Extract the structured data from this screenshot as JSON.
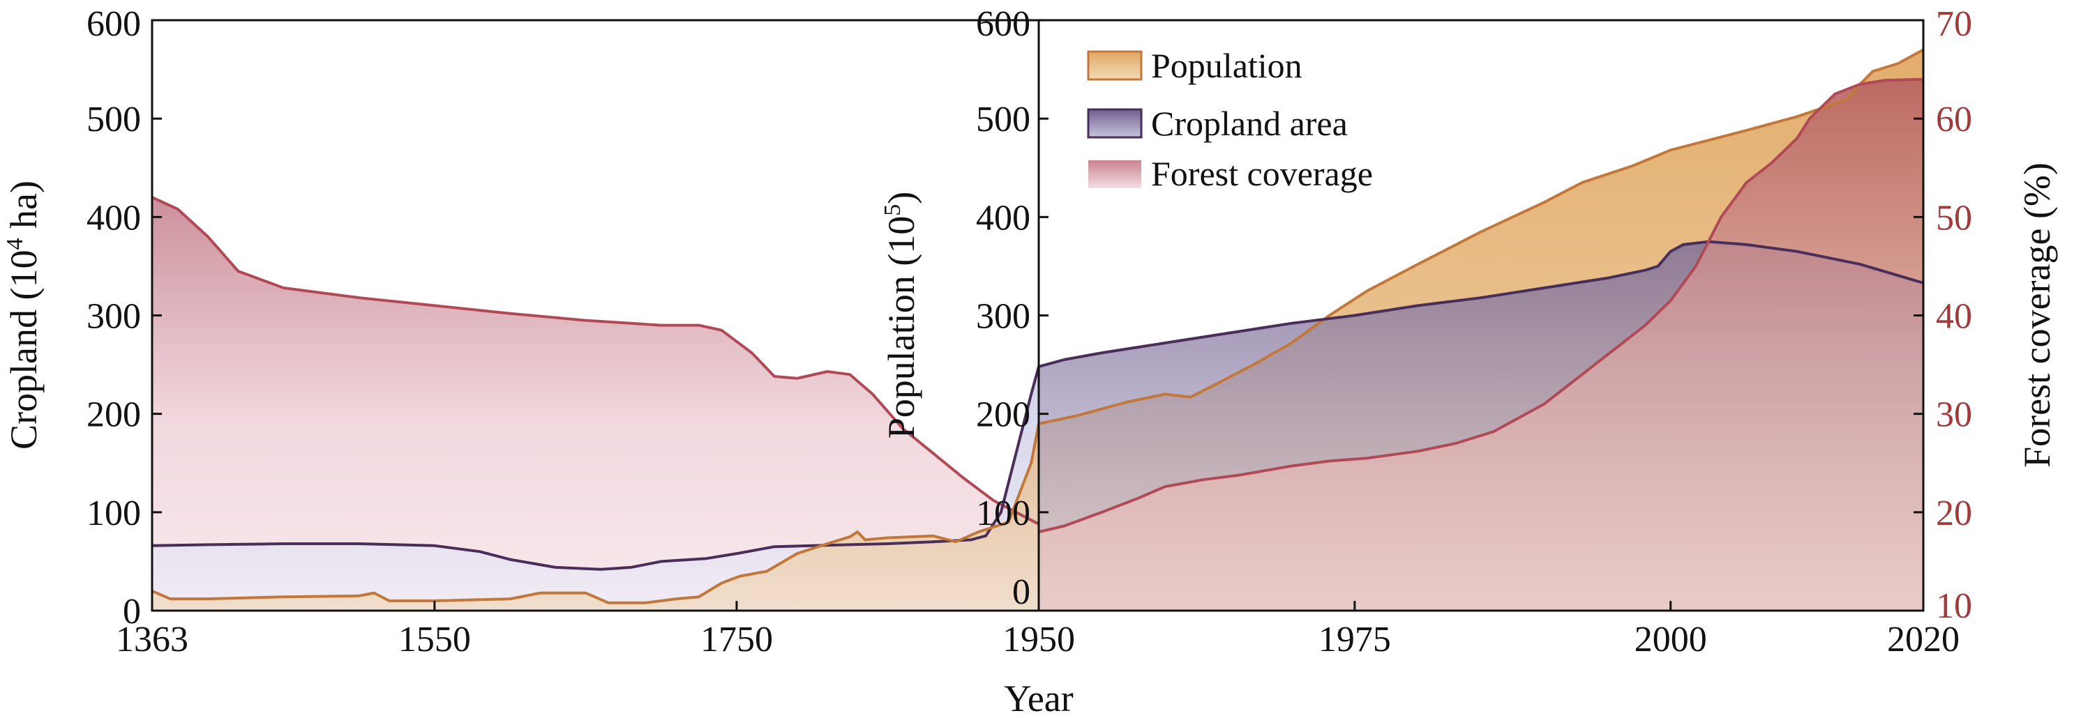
{
  "chart_data": {
    "type": "area",
    "x_label": "Year",
    "panels": [
      {
        "name": "historical",
        "x_range": [
          1363,
          1950
        ],
        "x_ticks": [
          "1363",
          "1550",
          "1750",
          "1950"
        ],
        "y_label": "Cropland (10",
        "y_label_sup": "4",
        "y_label_suffix": " ha)",
        "y_range": [
          0,
          600
        ],
        "y_ticks": [
          "0",
          "100",
          "200",
          "300",
          "400",
          "500",
          "600"
        ],
        "forest_coverage_units": "Cropland (10^4 ha)",
        "series": [
          {
            "name": "Forest coverage",
            "points": [
              [
                1363,
                420
              ],
              [
                1380,
                408
              ],
              [
                1400,
                380
              ],
              [
                1420,
                345
              ],
              [
                1450,
                328
              ],
              [
                1500,
                318
              ],
              [
                1550,
                310
              ],
              [
                1600,
                302
              ],
              [
                1650,
                295
              ],
              [
                1700,
                290
              ],
              [
                1725,
                290
              ],
              [
                1740,
                285
              ],
              [
                1760,
                262
              ],
              [
                1775,
                238
              ],
              [
                1790,
                236
              ],
              [
                1810,
                243
              ],
              [
                1825,
                240
              ],
              [
                1840,
                220
              ],
              [
                1860,
                185
              ],
              [
                1880,
                160
              ],
              [
                1900,
                135
              ],
              [
                1920,
                112
              ],
              [
                1935,
                100
              ],
              [
                1950,
                88
              ]
            ]
          },
          {
            "name": "Cropland area",
            "points": [
              [
                1363,
                66
              ],
              [
                1400,
                67
              ],
              [
                1450,
                68
              ],
              [
                1500,
                68
              ],
              [
                1550,
                66
              ],
              [
                1580,
                60
              ],
              [
                1600,
                52
              ],
              [
                1630,
                44
              ],
              [
                1660,
                42
              ],
              [
                1680,
                44
              ],
              [
                1700,
                50
              ],
              [
                1730,
                53
              ],
              [
                1750,
                58
              ],
              [
                1775,
                65
              ],
              [
                1800,
                66
              ],
              [
                1850,
                68
              ],
              [
                1880,
                70
              ],
              [
                1905,
                72
              ],
              [
                1915,
                76
              ],
              [
                1925,
                100
              ],
              [
                1935,
                160
              ],
              [
                1945,
                220
              ],
              [
                1950,
                248
              ]
            ]
          },
          {
            "name": "Population",
            "points": [
              [
                1363,
                20
              ],
              [
                1375,
                12
              ],
              [
                1400,
                12
              ],
              [
                1450,
                14
              ],
              [
                1500,
                15
              ],
              [
                1510,
                18
              ],
              [
                1520,
                10
              ],
              [
                1550,
                10
              ],
              [
                1600,
                12
              ],
              [
                1620,
                18
              ],
              [
                1650,
                18
              ],
              [
                1665,
                8
              ],
              [
                1690,
                8
              ],
              [
                1710,
                12
              ],
              [
                1725,
                14
              ],
              [
                1740,
                28
              ],
              [
                1752,
                35
              ],
              [
                1770,
                40
              ],
              [
                1790,
                58
              ],
              [
                1810,
                68
              ],
              [
                1825,
                75
              ],
              [
                1830,
                80
              ],
              [
                1835,
                72
              ],
              [
                1850,
                74
              ],
              [
                1880,
                76
              ],
              [
                1895,
                70
              ],
              [
                1910,
                80
              ],
              [
                1930,
                90
              ],
              [
                1940,
                130
              ],
              [
                1945,
                150
              ],
              [
                1950,
                190
              ]
            ]
          }
        ]
      },
      {
        "name": "modern",
        "x_range": [
          1950,
          2020
        ],
        "x_ticks": [
          "1950",
          "1975",
          "2000",
          "2020"
        ],
        "y_label": "Population (10",
        "y_label_sup": "5",
        "y_label_suffix": ")",
        "y_range": [
          0,
          600
        ],
        "y_ticks": [
          "0",
          "100",
          "200",
          "300",
          "400",
          "500",
          "600"
        ],
        "right_axis_label": "Forest coverage (%)",
        "right_axis_range": [
          10,
          70
        ],
        "right_axis_ticks": [
          "10",
          "20",
          "30",
          "40",
          "50",
          "60",
          "70"
        ],
        "right_axis_color": "#a13a3a",
        "series": [
          {
            "name": "Population",
            "points": [
              [
                1950,
                190
              ],
              [
                1953,
                198
              ],
              [
                1957,
                212
              ],
              [
                1960,
                220
              ],
              [
                1962,
                217
              ],
              [
                1964,
                230
              ],
              [
                1967,
                250
              ],
              [
                1970,
                272
              ],
              [
                1973,
                300
              ],
              [
                1976,
                325
              ],
              [
                1980,
                352
              ],
              [
                1985,
                385
              ],
              [
                1990,
                415
              ],
              [
                1993,
                435
              ],
              [
                1997,
                452
              ],
              [
                2000,
                468
              ],
              [
                2003,
                478
              ],
              [
                2006,
                488
              ],
              [
                2010,
                502
              ],
              [
                2013,
                515
              ],
              [
                2014,
                520
              ],
              [
                2015,
                535
              ],
              [
                2016,
                548
              ],
              [
                2018,
                556
              ],
              [
                2020,
                570
              ]
            ]
          },
          {
            "name": "Cropland area",
            "points": [
              [
                1950,
                248
              ],
              [
                1952,
                255
              ],
              [
                1955,
                262
              ],
              [
                1960,
                272
              ],
              [
                1965,
                282
              ],
              [
                1970,
                292
              ],
              [
                1975,
                300
              ],
              [
                1980,
                310
              ],
              [
                1985,
                318
              ],
              [
                1990,
                328
              ],
              [
                1995,
                338
              ],
              [
                1998,
                346
              ],
              [
                1999,
                350
              ],
              [
                2000,
                365
              ],
              [
                2001,
                372
              ],
              [
                2003,
                375
              ],
              [
                2006,
                372
              ],
              [
                2010,
                365
              ],
              [
                2015,
                352
              ],
              [
                2020,
                333
              ]
            ]
          },
          {
            "name": "Forest coverage",
            "points": [
              [
                1950,
                18
              ],
              [
                1952,
                18.6
              ],
              [
                1955,
                20
              ],
              [
                1958,
                21.5
              ],
              [
                1960,
                22.6
              ],
              [
                1963,
                23.3
              ],
              [
                1966,
                23.8
              ],
              [
                1970,
                24.7
              ],
              [
                1973,
                25.2
              ],
              [
                1976,
                25.5
              ],
              [
                1980,
                26.2
              ],
              [
                1983,
                27
              ],
              [
                1986,
                28.2
              ],
              [
                1990,
                31
              ],
              [
                1993,
                34
              ],
              [
                1996,
                37
              ],
              [
                1998,
                39
              ],
              [
                2000,
                41.5
              ],
              [
                2002,
                45
              ],
              [
                2004,
                50
              ],
              [
                2006,
                53.5
              ],
              [
                2008,
                55.5
              ],
              [
                2010,
                58
              ],
              [
                2011,
                60
              ],
              [
                2013,
                62.5
              ],
              [
                2015,
                63.5
              ],
              [
                2017,
                63.9
              ],
              [
                2020,
                64
              ]
            ]
          }
        ]
      }
    ],
    "legend": [
      "Population",
      "Cropland area",
      "Forest coverage"
    ],
    "colors": {
      "population_fill": "#e8b46a",
      "population_line": "#c2783a",
      "cropland_fill": "#9c9cc8",
      "cropland_line": "#4a2e59",
      "forest_fill": "#c98a96",
      "forest_line": "#b04a57"
    }
  }
}
